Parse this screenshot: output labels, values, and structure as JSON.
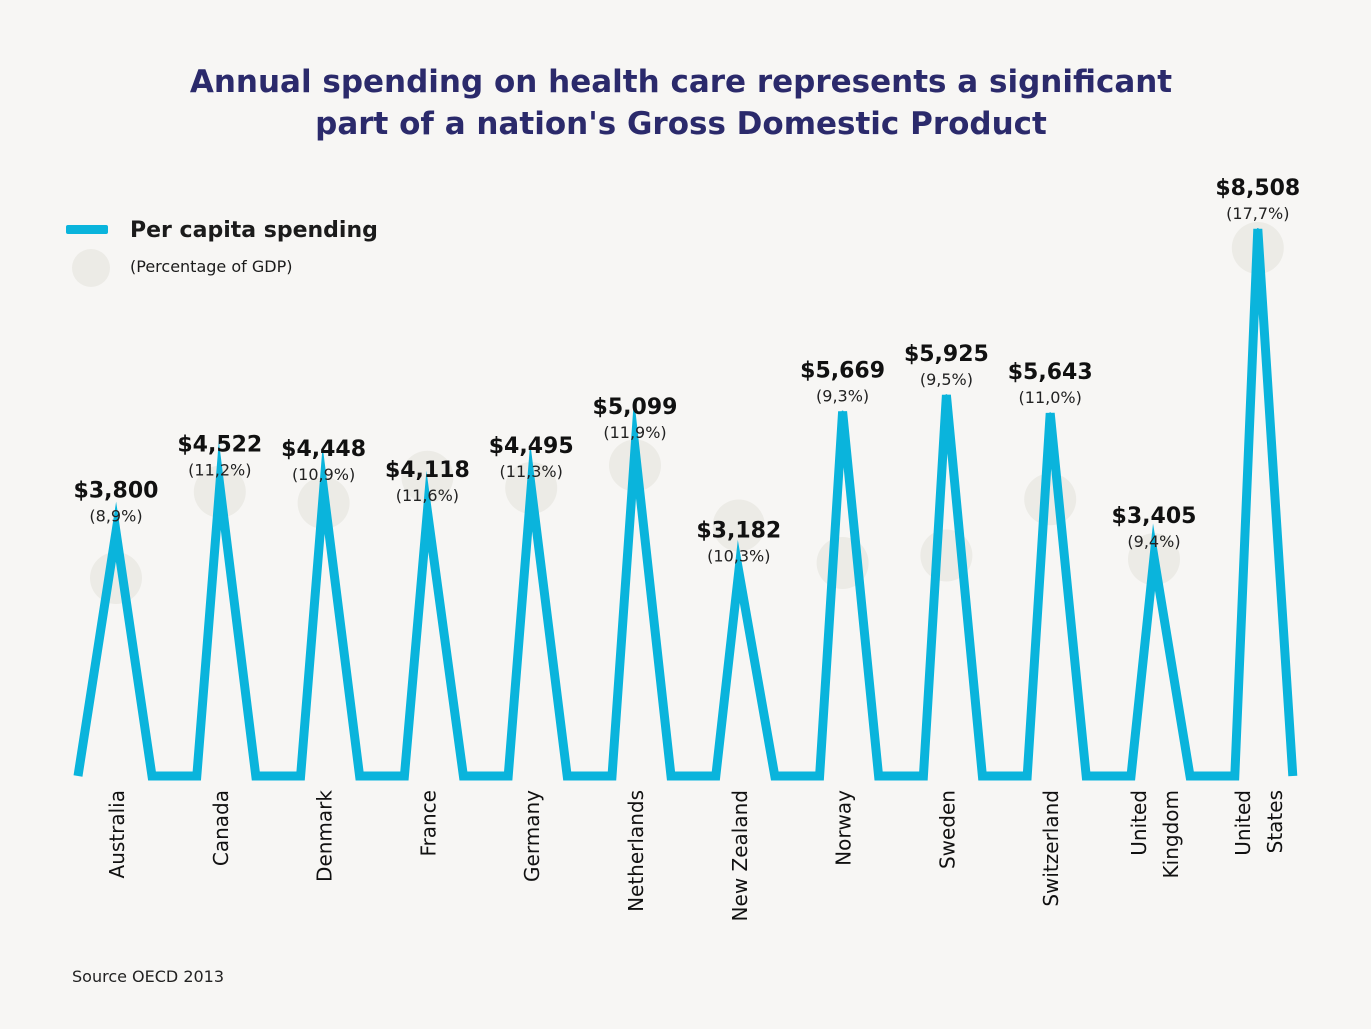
{
  "title_lines": [
    "Annual spending on health care represents a significant",
    "part of a nation's Gross Domestic Product"
  ],
  "legend": {
    "series_label": "Per capita spending",
    "marker_label": "(Percentage of GDP)"
  },
  "source": "Source OECD 2013",
  "colors": {
    "line": "#0ab4dc",
    "title": "#2b2a6b",
    "circle": "#ecebe6",
    "background": "#f7f6f4"
  },
  "chart_data": {
    "type": "line",
    "title": "Annual spending on health care represents a significant part of a nation's Gross Domestic Product",
    "categories": [
      [
        "Australia"
      ],
      [
        "Canada"
      ],
      [
        "Denmark"
      ],
      [
        "France"
      ],
      [
        "Germany"
      ],
      [
        "Netherlands"
      ],
      [
        "New Zealand"
      ],
      [
        "Norway"
      ],
      [
        "Sweden"
      ],
      [
        "Switzerland"
      ],
      [
        "United",
        "Kingdom"
      ],
      [
        "United",
        "States"
      ]
    ],
    "series": [
      {
        "name": "Per capita spending",
        "values": [
          3800,
          4522,
          4448,
          4118,
          4495,
          5099,
          3182,
          5669,
          5925,
          5643,
          3405,
          8508
        ],
        "value_labels": [
          "$3,800",
          "$4,522",
          "$4,448",
          "$4,118",
          "$4,495",
          "$5,099",
          "$3,182",
          "$5,669",
          "$5,925",
          "$5,643",
          "$3,405",
          "$8,508"
        ]
      },
      {
        "name": "(Percentage of GDP)",
        "values": [
          8.9,
          11.2,
          10.9,
          11.6,
          11.3,
          11.9,
          10.3,
          9.3,
          9.5,
          11.0,
          9.4,
          17.7
        ],
        "value_labels": [
          "(8,9%)",
          "(11,2%)",
          "(10,9%)",
          "(11,6%)",
          "(11,3%)",
          "(11,9%)",
          "(10,3%)",
          "(9,3%)",
          "(9,5%)",
          "(11,0%)",
          "(9,4%)",
          "(17,7%)"
        ]
      }
    ],
    "ylim": [
      0,
      8508
    ],
    "grid": false,
    "legend_position": "top-left"
  }
}
